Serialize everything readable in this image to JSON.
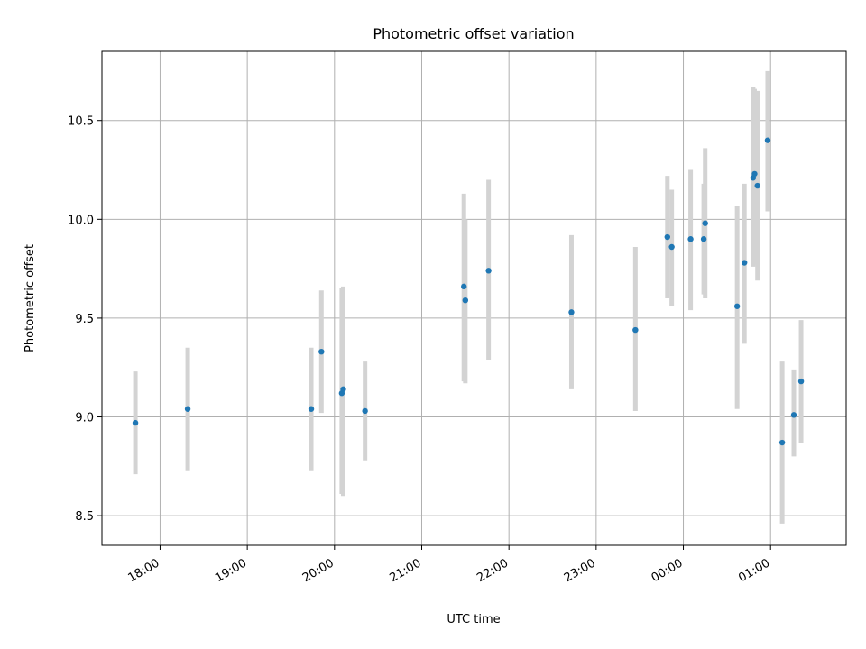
{
  "chart_data": {
    "type": "scatter",
    "title": "Photometric offset variation",
    "xlabel": "UTC time",
    "ylabel": "Photometric offset",
    "xlim": [
      "17:20",
      "01:52"
    ],
    "ylim": [
      8.35,
      10.85
    ],
    "x_ticks": [
      "18:00",
      "19:00",
      "20:00",
      "21:00",
      "22:00",
      "23:00",
      "00:00",
      "01:00"
    ],
    "y_ticks": [
      "8.5",
      "9.0",
      "9.5",
      "10.0",
      "10.5"
    ],
    "grid": true,
    "colors": {
      "marker": "#1f77b4",
      "errorbar": "#d3d3d3",
      "grid": "#b0b0b0"
    },
    "series": [
      {
        "x": [
          "17:43",
          "18:19",
          "19:44",
          "19:51",
          "20:05",
          "20:06",
          "20:21",
          "21:29",
          "21:30",
          "21:46",
          "22:43",
          "23:27",
          "23:49",
          "23:52",
          "00:05",
          "00:14",
          "00:15",
          "00:37",
          "00:42",
          "00:48",
          "00:49",
          "00:51",
          "00:58",
          "01:08",
          "01:16",
          "01:21"
        ],
        "y": [
          8.97,
          9.04,
          9.04,
          9.33,
          9.12,
          9.14,
          9.03,
          9.66,
          9.59,
          9.74,
          9.53,
          9.44,
          9.91,
          9.86,
          9.9,
          9.9,
          9.98,
          9.56,
          9.78,
          10.21,
          10.23,
          10.17,
          10.4,
          8.87,
          9.01,
          9.18
        ],
        "yerr_low": [
          8.71,
          8.73,
          8.73,
          9.02,
          8.61,
          8.6,
          8.78,
          9.18,
          9.17,
          9.29,
          9.14,
          9.03,
          9.6,
          9.56,
          9.54,
          9.62,
          9.6,
          9.04,
          9.37,
          9.76,
          9.77,
          9.69,
          10.04,
          8.46,
          8.8,
          8.87
        ],
        "yerr_high": [
          9.23,
          9.35,
          9.35,
          9.64,
          9.65,
          9.66,
          9.28,
          10.13,
          10.0,
          10.2,
          9.92,
          9.86,
          10.22,
          10.15,
          10.25,
          10.18,
          10.36,
          10.07,
          10.18,
          10.67,
          10.66,
          10.65,
          10.75,
          9.28,
          9.24,
          9.49
        ]
      }
    ]
  }
}
